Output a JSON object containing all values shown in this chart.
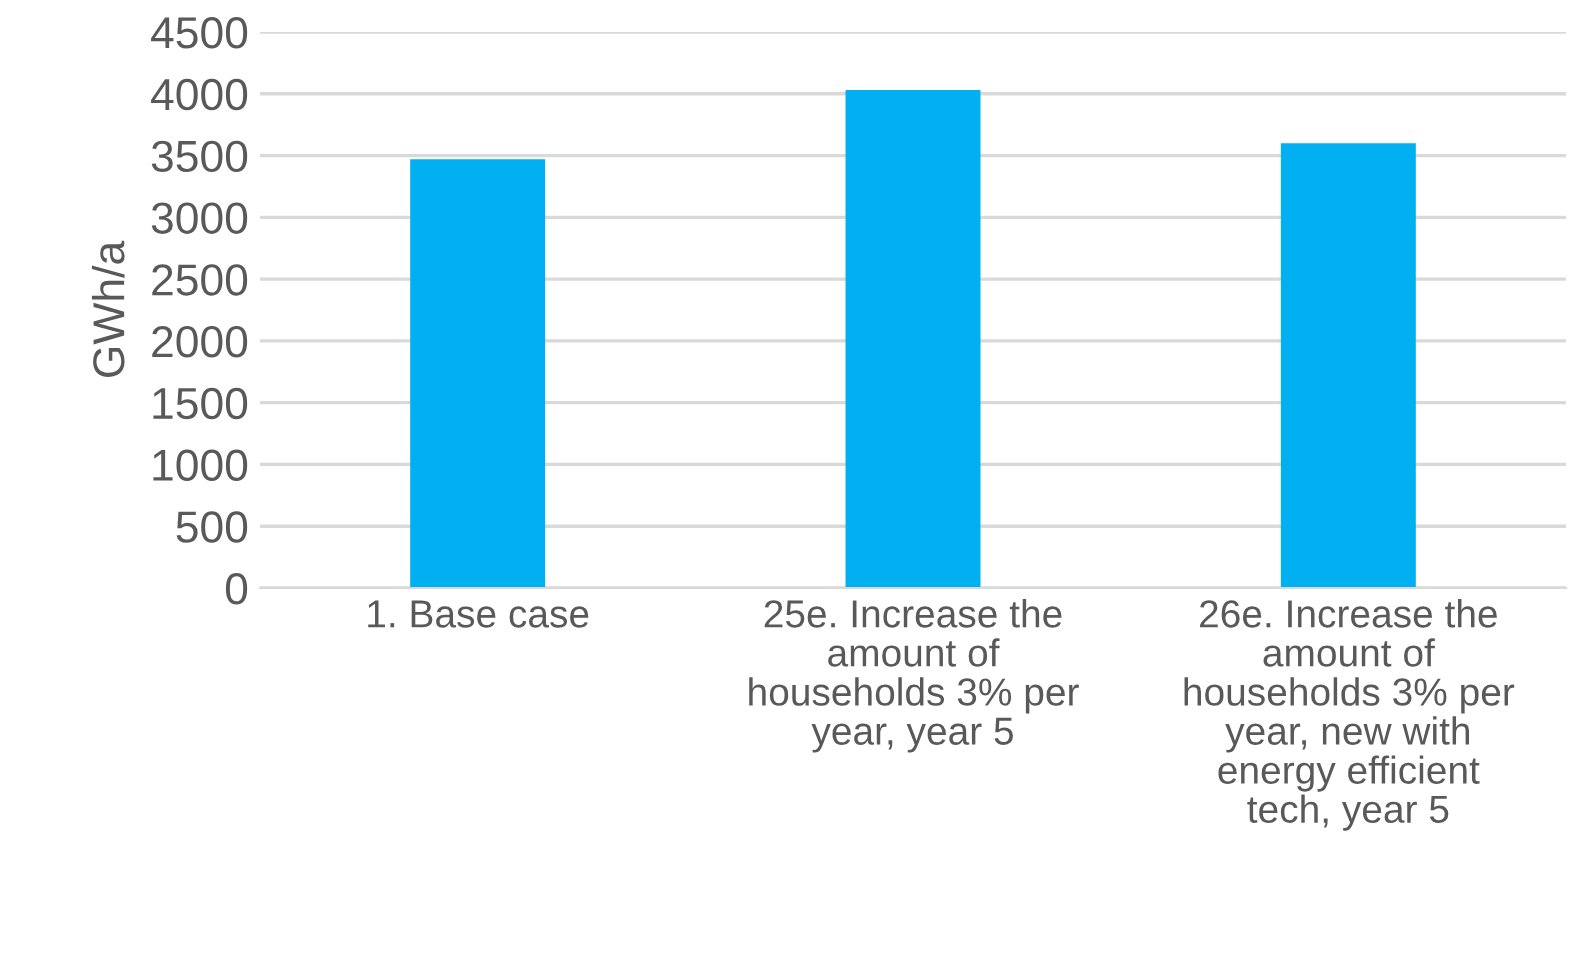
{
  "chart_data": {
    "type": "bar",
    "ylabel": "GWh/a",
    "categories": [
      "1. Base case",
      "25e. Increase the\namount of\nhouseholds 3% per\nyear, year 5",
      "26e. Increase the\namount of\nhouseholds 3% per\nyear, new with\nenergy efficient\ntech, year 5"
    ],
    "values": [
      3470,
      4030,
      3600
    ],
    "color": "#00b0f0",
    "ylim": [
      0,
      4500
    ],
    "yticks": [
      0,
      500,
      1000,
      1500,
      2000,
      2500,
      3000,
      3500,
      4000,
      4500
    ],
    "grid": "y",
    "legend": false
  }
}
